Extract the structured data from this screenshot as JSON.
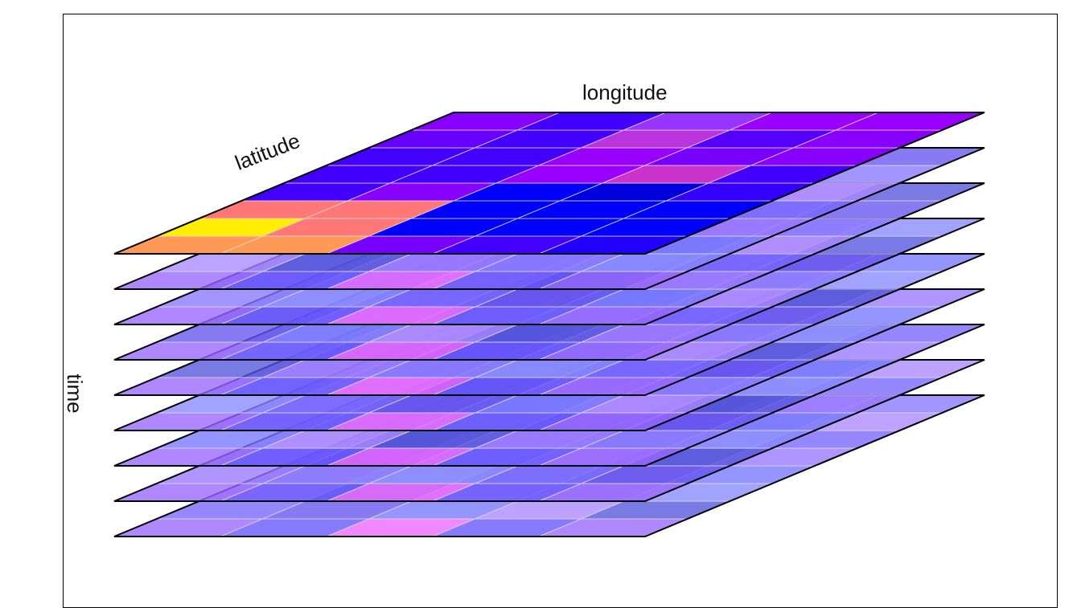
{
  "labels": {
    "longitude": "longitude",
    "latitude": "latitude",
    "time": "time"
  },
  "cube": {
    "layers": 9,
    "rows": 8,
    "cols": 5,
    "top_grid": [
      [
        "#8800ff",
        "#4400ff",
        "#9933ff",
        "#9900ff",
        "#9900ff"
      ],
      [
        "#6600ff",
        "#4400ff",
        "#bb33dd",
        "#5500ff",
        "#8800ff"
      ],
      [
        "#4400ff",
        "#4400ff",
        "#9900ff",
        "#7700ff",
        "#8800ff"
      ],
      [
        "#4400ff",
        "#4400ff",
        "#9900ff",
        "#cc33cc",
        "#4400ff"
      ],
      [
        "#4400ff",
        "#8800ff",
        "#0000ff",
        "#0000dd",
        "#3300ff"
      ],
      [
        "#ff7777",
        "#ff7777",
        "#0000ff",
        "#0000ff",
        "#0000ff"
      ],
      [
        "#ffee00",
        "#ff7777",
        "#0000ff",
        "#0000ff",
        "#0000ff"
      ],
      [
        "#ff9955",
        "#ff9955",
        "#7700ff",
        "#4400ff",
        "#2200ff"
      ]
    ],
    "lower_front_row": [
      "#9966ff",
      "#6655ff",
      "#ee55ff",
      "#6655ff",
      "#9966ff"
    ],
    "lower_colors": [
      "#9977ff",
      "#7766ff",
      "#aa88ff",
      "#8877ff",
      "#6655ee",
      "#5555dd",
      "#8888ff",
      "#7777ff"
    ],
    "highlight": "#ee66ff",
    "edge_color": "#000000",
    "grid_line_color": "#dddddd"
  }
}
